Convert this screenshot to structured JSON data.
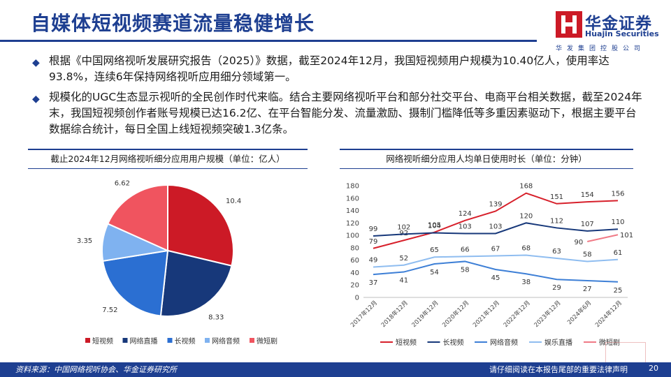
{
  "page": {
    "title": "自媒体短视频赛道流量稳健增长",
    "page_number": "20"
  },
  "logo": {
    "cn": "华金证券",
    "en": "Huajin Securities",
    "sub": "华发集团控股公司"
  },
  "bullets": [
    "根据《中国网络视听发展研究报告（2025）》数据，截至2024年12月，我国短视频用户规模为10.40亿人，使用率达93.8%，连续6年保持网络视听应用细分领域第一。",
    "规模化的UGC生态显示视听的全民创作时代来临。结合主要网络视听平台和部分社交平台、电商平台相关数据，截至2024年末，我国短视频创作者账号规模已达16.2亿、在平台智能分发、流量激励、摄制门槛降低等多重因素驱动下，根据主要平台数据综合统计，每日全国上线短视频突破1.3亿条。"
  ],
  "colors": {
    "brand": "#1e3f91",
    "pie": [
      "#cc1a26",
      "#17387a",
      "#2b6fd2",
      "#7fb2f0",
      "#f0545f"
    ]
  },
  "footer": {
    "source": "资料来源：中国网络视听协会、华金证券研究所",
    "disclaimer": "请仔细阅读在本报告尾部的重要法律声明"
  },
  "chart_data": [
    {
      "type": "pie",
      "title": "截止2024年12月网络视听细分应用用户规模（单位：亿人）",
      "categories": [
        "短视频",
        "网络直播",
        "长视频",
        "网络音频",
        "微短剧"
      ],
      "values": [
        10.4,
        8.33,
        7.52,
        3.35,
        6.62
      ],
      "value_labels": [
        "10.4",
        "8.33",
        "7.52",
        "3.35",
        "6.62"
      ],
      "legend_position": "bottom"
    },
    {
      "type": "line",
      "title": "网络视听细分应用人均单日使用时长（单位：分钟）",
      "x": [
        "2017年12月",
        "2018年12月",
        "2019年12月",
        "2020年12月",
        "2021年12月",
        "2022年12月",
        "2023年12月",
        "2024年6月",
        "2024年12月"
      ],
      "ylim": [
        0,
        180
      ],
      "yticks": [
        0,
        20,
        40,
        60,
        80,
        100,
        120,
        140,
        160,
        180
      ],
      "grid": false,
      "legend_position": "bottom",
      "series": [
        {
          "name": "短视频",
          "color": "#d7202b",
          "values": [
            79,
            92,
            105,
            124,
            139,
            168,
            151,
            154,
            156
          ],
          "labels": [
            "79",
            "92",
            "105",
            "124",
            "139",
            "168",
            "151",
            "154",
            "156"
          ]
        },
        {
          "name": "长视频",
          "color": "#17387a",
          "values": [
            99,
            102,
            104,
            103,
            103,
            120,
            112,
            107,
            110
          ],
          "labels": [
            "99",
            "102",
            "104",
            "103",
            "103",
            "120",
            "112",
            "107",
            "110"
          ]
        },
        {
          "name": "网络音频",
          "color": "#3d7fd6",
          "values": [
            37,
            41,
            54,
            58,
            45,
            38,
            29,
            27,
            25
          ],
          "labels": [
            "37",
            "41",
            "54",
            "58",
            "45",
            "38",
            "29",
            "27",
            "25"
          ]
        },
        {
          "name": "娱乐直播",
          "color": "#8fbdf0",
          "values": [
            49,
            52,
            65,
            66,
            67,
            68,
            63,
            58,
            61
          ],
          "labels": [
            "49",
            "52",
            "65",
            "66",
            "67",
            "68",
            "63",
            "58",
            "61"
          ]
        },
        {
          "name": "微短剧",
          "color": "#f07a86",
          "values": [
            null,
            null,
            null,
            null,
            null,
            null,
            null,
            90,
            101
          ],
          "labels": [
            "",
            "",
            "",
            "",
            "",
            "",
            "",
            "90",
            "101"
          ]
        }
      ]
    }
  ]
}
